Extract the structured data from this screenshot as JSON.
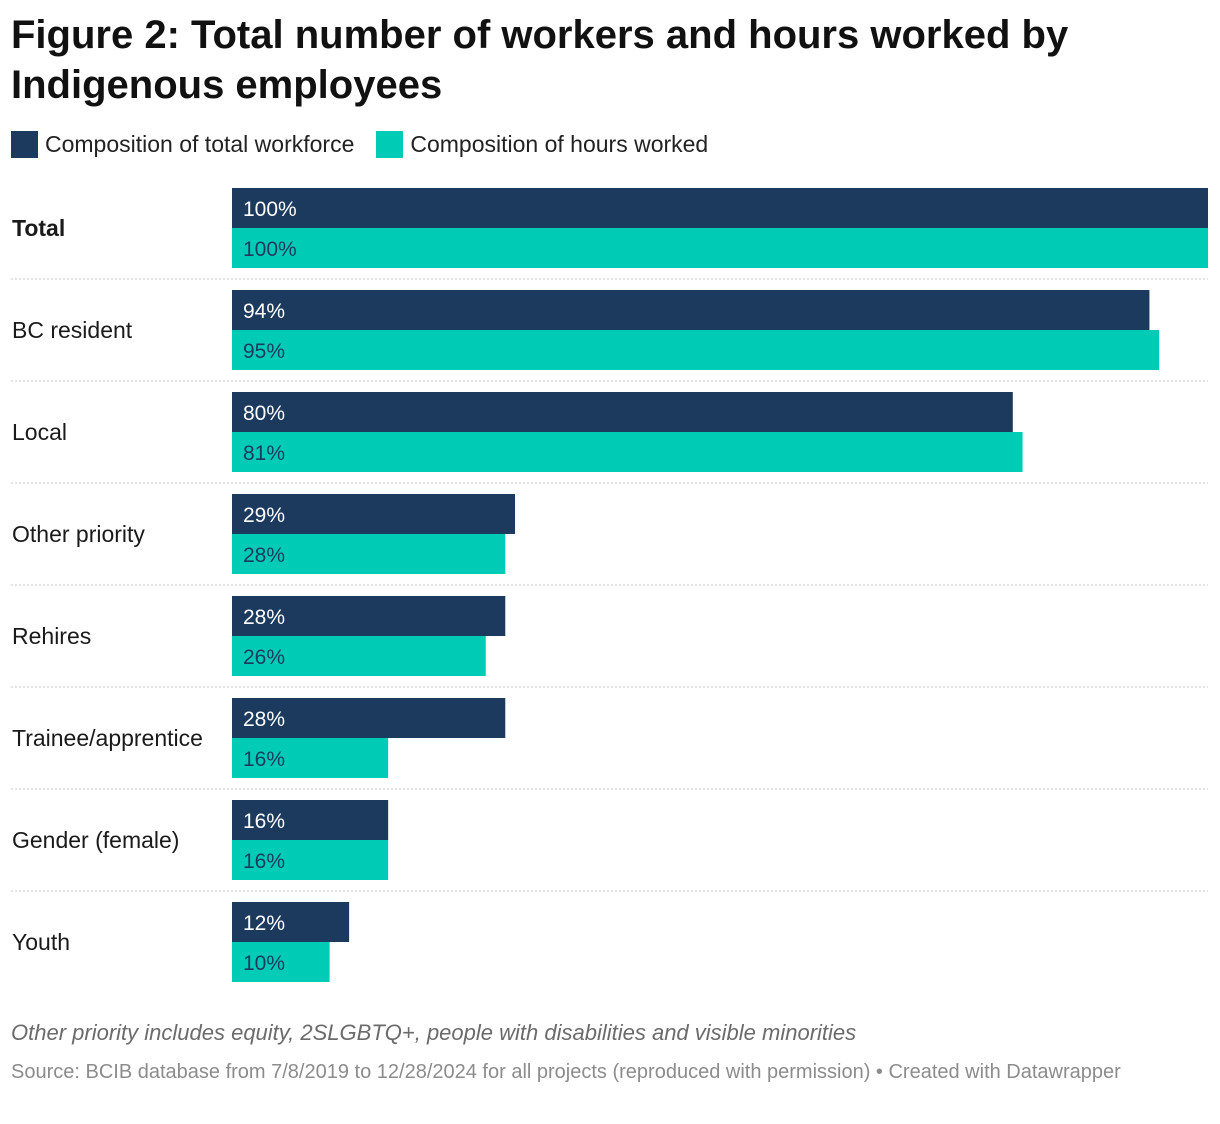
{
  "title": "Figure 2: Total number of workers and hours worked by Indigenous employees",
  "legend": [
    {
      "label": "Composition of total workforce",
      "color": "#1b3a5e"
    },
    {
      "label": "Composition of hours worked",
      "color": "#00ccb6"
    }
  ],
  "chart_data": {
    "type": "bar",
    "orientation": "horizontal",
    "title": "Figure 2: Total number of workers and hours worked by Indigenous employees",
    "categories": [
      "Total",
      "BC resident",
      "Local",
      "Other priority",
      "Rehires",
      "Trainee/apprentice",
      "Gender (female)",
      "Youth"
    ],
    "series": [
      {
        "name": "Composition of total workforce",
        "color": "#1b3a5e",
        "values": [
          100,
          94,
          80,
          29,
          28,
          28,
          16,
          12
        ],
        "labels": [
          "100%",
          "94%",
          "80%",
          "29%",
          "28%",
          "28%",
          "16%",
          "12%"
        ]
      },
      {
        "name": "Composition of hours worked",
        "color": "#00ccb6",
        "values": [
          100,
          95,
          81,
          28,
          26,
          16,
          16,
          10
        ],
        "labels": [
          "100%",
          "95%",
          "81%",
          "28%",
          "26%",
          "16%",
          "16%",
          "10%"
        ]
      }
    ],
    "xlim": [
      0,
      100
    ],
    "unit": "%",
    "bold_categories": [
      "Total"
    ],
    "xlabel": "",
    "ylabel": ""
  },
  "footer": {
    "note": "Other priority includes equity, 2SLGBTQ+, people with disabilities and visible minorities",
    "source": "Source: BCIB database from 7/8/2019 to 12/28/2024 for all projects (reproduced with permission) • Created with Datawrapper"
  }
}
